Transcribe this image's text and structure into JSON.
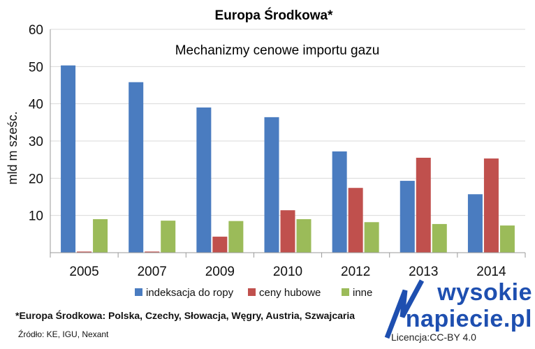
{
  "chart_data": {
    "type": "bar",
    "title": "Europa Środkowa*",
    "subtitle": "Mechanizmy cenowe importu gazu",
    "ylabel": "mld m sześc.",
    "xlabel": "",
    "categories": [
      "2005",
      "2007",
      "2009",
      "2010",
      "2012",
      "2013",
      "2014"
    ],
    "ylim": [
      0,
      60
    ],
    "yticks": [
      60,
      50,
      40,
      30,
      20,
      10
    ],
    "grid": true,
    "legend_position": "bottom",
    "series": [
      {
        "name": "indeksacja do ropy",
        "color": "#4a7cc0",
        "values": [
          50.3,
          45.8,
          39.0,
          36.4,
          27.2,
          19.3,
          15.7
        ]
      },
      {
        "name": "ceny hubowe",
        "color": "#c0504d",
        "values": [
          0.3,
          0.3,
          4.3,
          11.4,
          17.4,
          25.5,
          25.3
        ]
      },
      {
        "name": "inne",
        "color": "#9bbb59",
        "values": [
          9.0,
          8.6,
          8.5,
          9.0,
          8.2,
          7.7,
          7.3
        ]
      }
    ]
  },
  "footnote": "*Europa Środkowa: Polska, Czechy, Słowacja, Węgry, Austria, Szwajcaria",
  "source": "Źródło: KE, IGU, Nexant",
  "logo": {
    "line1": "wysokie",
    "line2": "napiecie.pl",
    "color": "#1e4fb0"
  },
  "license": "Licencja:CC-BY 4.0"
}
